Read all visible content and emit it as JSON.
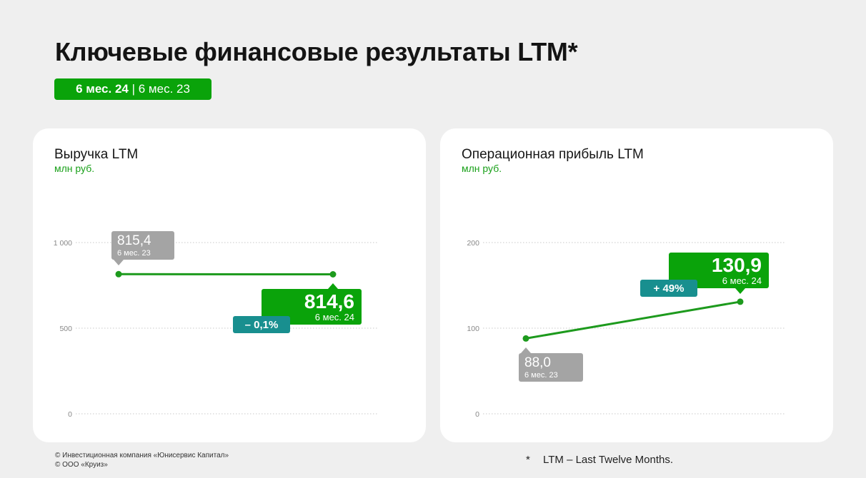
{
  "header": {
    "title": "Ключевые финансовые результаты LTM*",
    "period_current": "6 мес. 24",
    "period_separator": "|",
    "period_previous": "6 мес. 23"
  },
  "cards": [
    {
      "title": "Выручка LTM",
      "unit": "млн руб."
    },
    {
      "title": "Операционная прибыль LTM",
      "unit": "млн руб."
    }
  ],
  "chart_data": [
    {
      "type": "line",
      "title": "Выручка LTM",
      "ylabel": "млн руб.",
      "x": [
        "6 мес. 23",
        "6 мес. 24"
      ],
      "values": [
        815.4,
        814.6
      ],
      "value_labels": [
        "815,4",
        "814,6"
      ],
      "period_labels": [
        "6 мес. 23",
        "6 мес. 24"
      ],
      "change_label": "– 0,1%",
      "ylim": [
        0,
        1000
      ],
      "yticks": [
        0,
        500,
        1000
      ],
      "ytick_labels": [
        "0",
        "500",
        "1 000"
      ],
      "grid": "dotted horizontal"
    },
    {
      "type": "line",
      "title": "Операционная прибыль LTM",
      "ylabel": "млн руб.",
      "x": [
        "6 мес. 23",
        "6 мес. 24"
      ],
      "values": [
        88.0,
        130.9
      ],
      "value_labels": [
        "88,0",
        "130,9"
      ],
      "period_labels": [
        "6 мес. 23",
        "6 мес. 24"
      ],
      "change_label": "+ 49%",
      "ylim": [
        0,
        200
      ],
      "yticks": [
        0,
        100,
        200
      ],
      "ytick_labels": [
        "0",
        "100",
        "200"
      ],
      "grid": "dotted horizontal"
    }
  ],
  "colors": {
    "accent": "#0aa30a",
    "line": "#1d9a1d",
    "previous_label_bg": "#a4a4a4",
    "change_badge_bg": "#188f8f",
    "grid": "#c8c8c8",
    "background": "#efefef",
    "card": "#ffffff"
  },
  "footer": {
    "copyright_1": "© Инвестиционная компания «Юнисервис Капитал»",
    "copyright_2": "© ООО «Круиз»",
    "note_marker": "*",
    "note_text": "LTM – Last Twelve Months."
  }
}
